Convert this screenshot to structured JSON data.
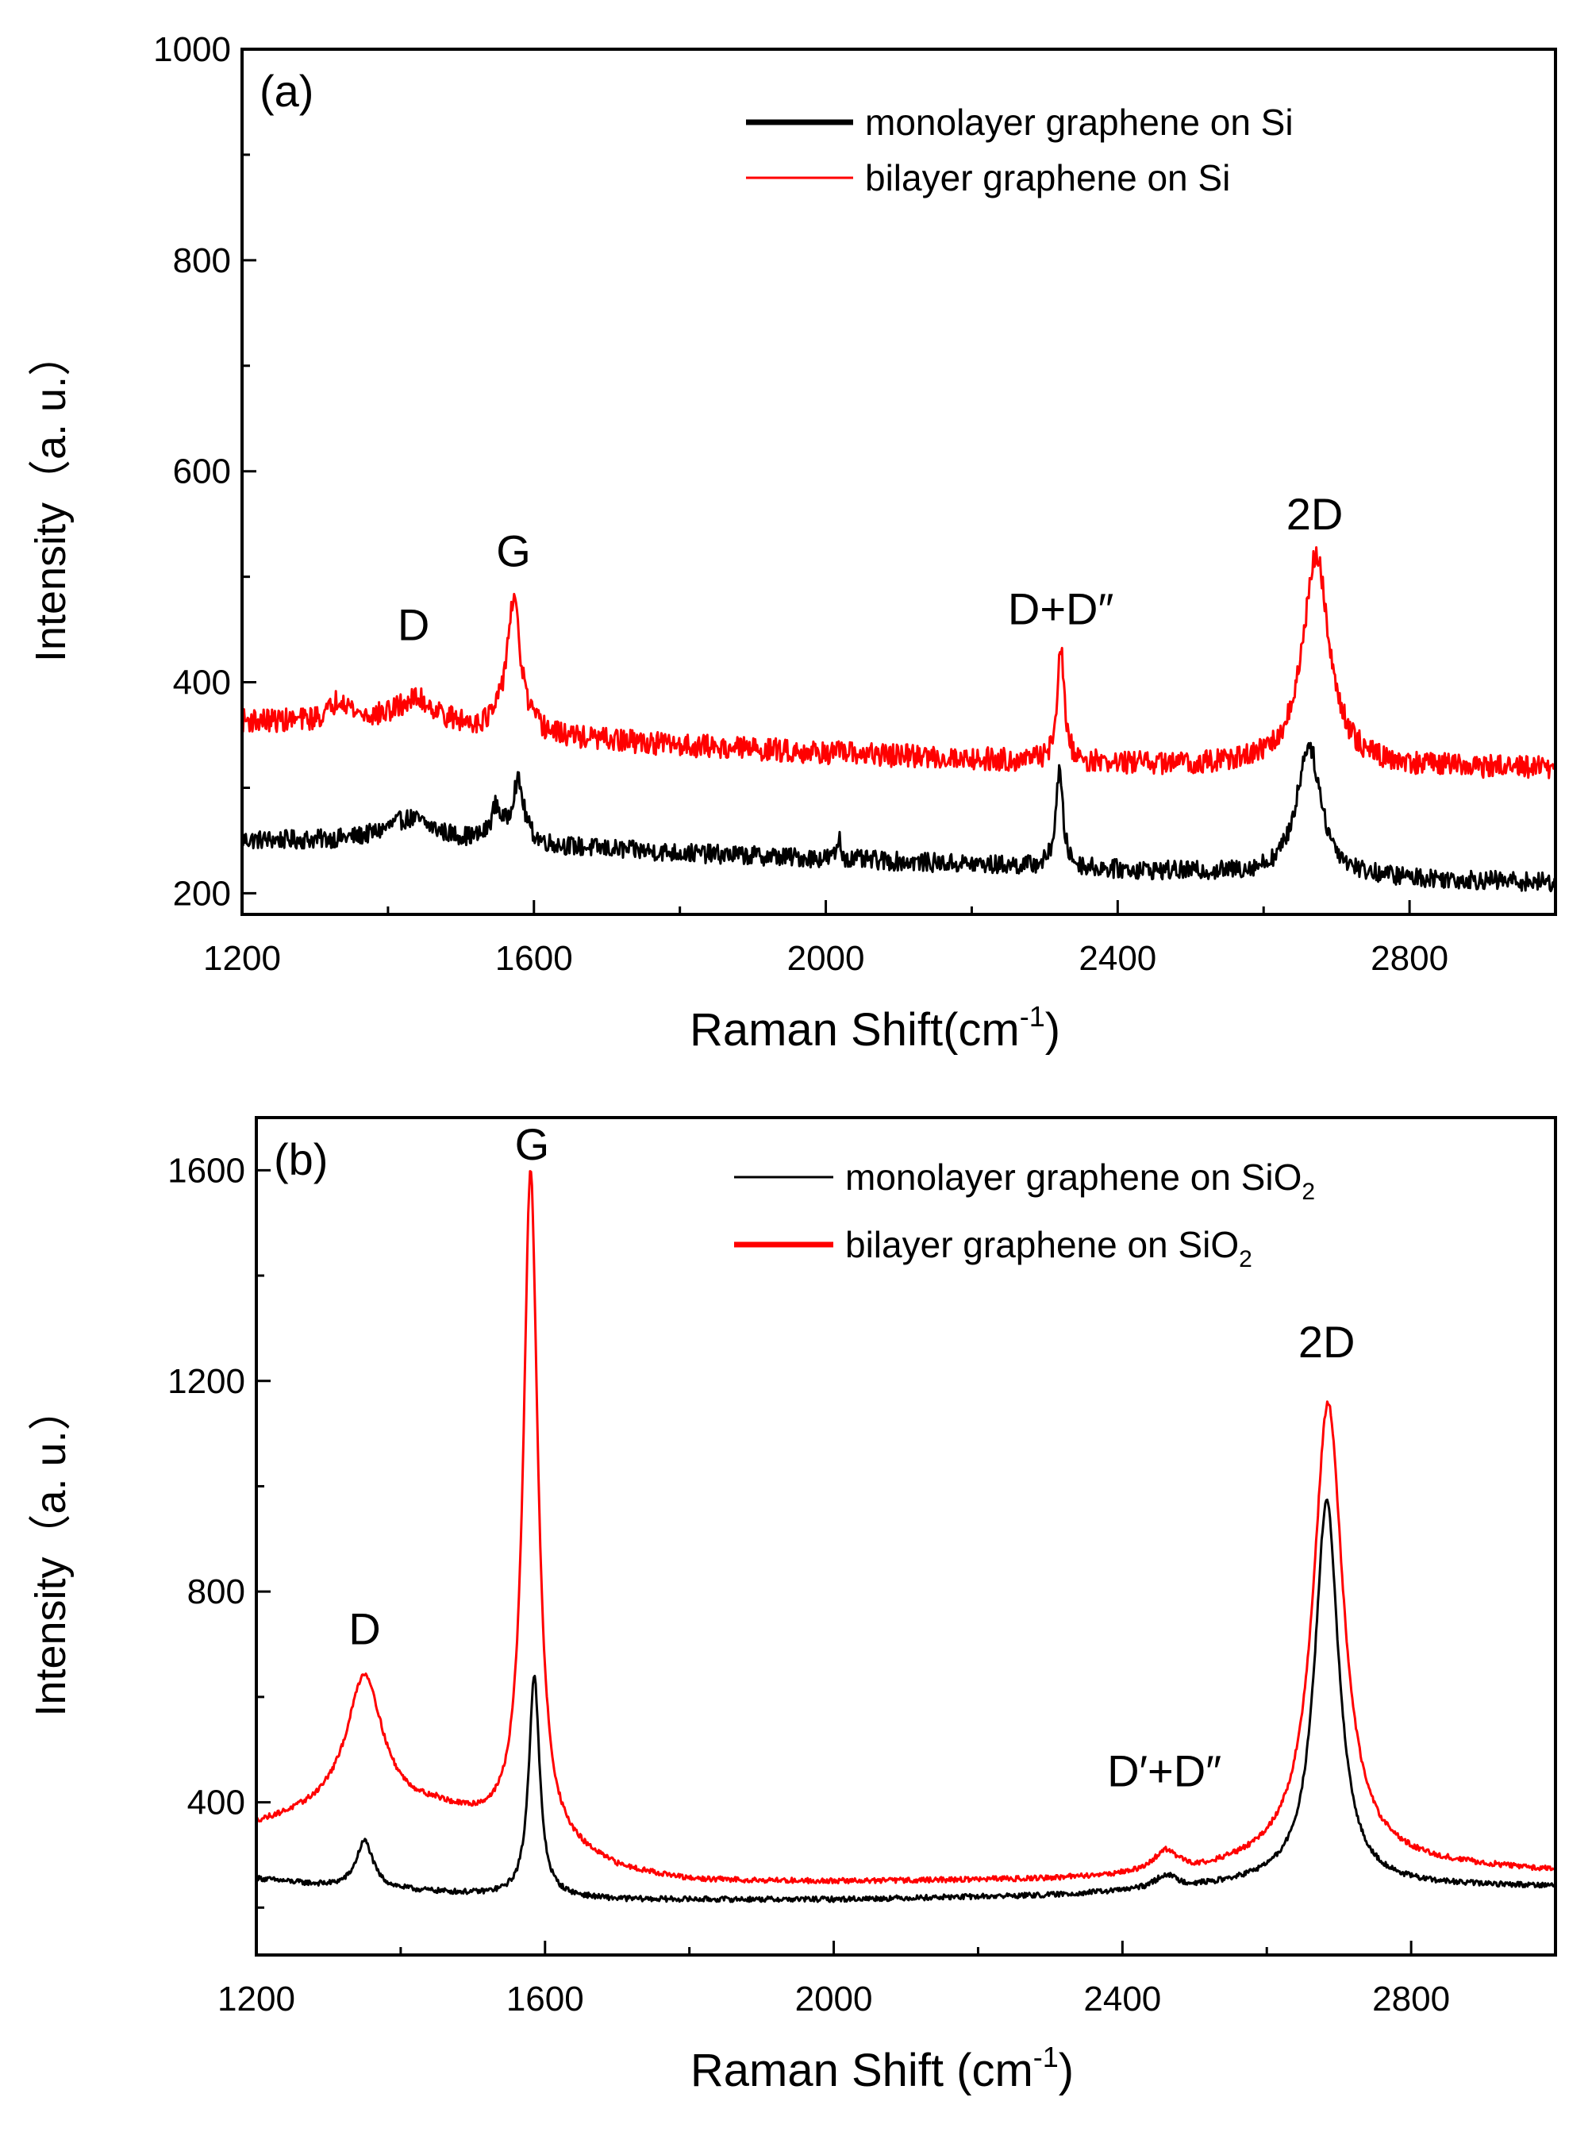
{
  "chart_data": [
    {
      "type": "line",
      "panel_label": "(a)",
      "xlabel": "Raman Shift(cm",
      "xlabel_sup": "-1",
      "xlabel_tail": ")",
      "ylabel": "Intensity（a. u.）",
      "xlim": [
        1200,
        3000
      ],
      "ylim": [
        180,
        1000
      ],
      "xticks": [
        1200,
        1600,
        2000,
        2400,
        2800
      ],
      "yticks": [
        200,
        400,
        600,
        800,
        1000
      ],
      "legend": {
        "position": "top-right",
        "entries": [
          {
            "name": "monolayer graphene on Si",
            "sub": "",
            "color": "#000000",
            "bold_line": true
          },
          {
            "name": "bilayer graphene on Si",
            "sub": "",
            "color": "#ff0000",
            "bold_line": false
          }
        ]
      },
      "annotations": [
        {
          "text": "D",
          "x": 1435,
          "y": 440
        },
        {
          "text": "G",
          "x": 1572,
          "y": 510
        },
        {
          "text": "D+D″",
          "x": 2322,
          "y": 455
        },
        {
          "text": "2D",
          "x": 2670,
          "y": 545
        }
      ],
      "series": [
        {
          "name": "monolayer graphene on Si",
          "color": "#000000",
          "noise": 9,
          "baseline": [
            [
              1200,
              250
            ],
            [
              1500,
              248
            ],
            [
              1800,
              238
            ],
            [
              2100,
              230
            ],
            [
              2400,
              222
            ],
            [
              2700,
              215
            ],
            [
              3000,
              210
            ]
          ],
          "peaks": [
            {
              "center": 1430,
              "amp": 22,
              "width": 40
            },
            {
              "center": 1548,
              "amp": 30,
              "width": 8
            },
            {
              "center": 1578,
              "amp": 58,
              "width": 10
            },
            {
              "center": 2018,
              "amp": 20,
              "width": 3
            },
            {
              "center": 2320,
              "amp": 90,
              "width": 6
            },
            {
              "center": 2662,
              "amp": 125,
              "width": 20
            }
          ]
        },
        {
          "name": "bilayer graphene on Si",
          "color": "#ff0000",
          "noise": 11,
          "baseline": [
            [
              1200,
              363
            ],
            [
              1400,
              360
            ],
            [
              1600,
              348
            ],
            [
              1800,
              340
            ],
            [
              2000,
              333
            ],
            [
              2200,
              327
            ],
            [
              2400,
              322
            ],
            [
              2600,
              320
            ],
            [
              3000,
              318
            ]
          ],
          "peaks": [
            {
              "center": 1335,
              "amp": 22,
              "width": 15
            },
            {
              "center": 1440,
              "amp": 25,
              "width": 35
            },
            {
              "center": 1572,
              "amp": 125,
              "width": 12
            },
            {
              "center": 2322,
              "amp": 105,
              "width": 6
            },
            {
              "center": 2672,
              "amp": 200,
              "width": 22
            }
          ]
        }
      ]
    },
    {
      "type": "line",
      "panel_label": "(b)",
      "xlabel": "Raman Shift (cm",
      "xlabel_sup": "-1",
      "xlabel_tail": ")",
      "ylabel": "Intensity（a. u.）",
      "xlim": [
        1200,
        3000
      ],
      "ylim": [
        110,
        1700
      ],
      "xticks": [
        1200,
        1600,
        2000,
        2400,
        2800
      ],
      "yticks": [
        400,
        800,
        1200,
        1600
      ],
      "legend": {
        "position": "top-right",
        "entries": [
          {
            "name": "monolayer graphene on SiO",
            "sub": "2",
            "color": "#000000",
            "bold_line": false
          },
          {
            "name": "bilayer graphene on SiO",
            "sub": "2",
            "color": "#ff0000",
            "bold_line": true
          }
        ]
      },
      "annotations": [
        {
          "text": "D",
          "x": 1350,
          "y": 700
        },
        {
          "text": "G",
          "x": 1582,
          "y": 1620
        },
        {
          "text": "D′+D″",
          "x": 2458,
          "y": 430
        },
        {
          "text": "2D",
          "x": 2683,
          "y": 1245
        }
      ],
      "series": [
        {
          "name": "monolayer graphene on SiO2",
          "color": "#000000",
          "noise": 5,
          "baseline": [
            [
              1200,
              255
            ],
            [
              1300,
              240
            ],
            [
              1500,
              225
            ],
            [
              1700,
              215
            ],
            [
              2000,
              215
            ],
            [
              2300,
              222
            ],
            [
              2500,
              235
            ],
            [
              2600,
              245
            ],
            [
              2800,
              240
            ],
            [
              3000,
              240
            ]
          ],
          "peaks": [
            {
              "center": 1350,
              "amp": 90,
              "width": 14
            },
            {
              "center": 1585,
              "amp": 420,
              "width": 9
            },
            {
              "center": 2460,
              "amp": 25,
              "width": 18
            },
            {
              "center": 2683,
              "amp": 730,
              "width": 20
            }
          ]
        },
        {
          "name": "bilayer graphene on SiO2",
          "color": "#ff0000",
          "noise": 5,
          "baseline": [
            [
              1200,
              355
            ],
            [
              1300,
              380
            ],
            [
              1450,
              380
            ],
            [
              1550,
              340
            ],
            [
              1700,
              270
            ],
            [
              1800,
              250
            ],
            [
              2000,
              248
            ],
            [
              2300,
              252
            ],
            [
              2500,
              262
            ],
            [
              2650,
              290
            ],
            [
              2800,
              280
            ],
            [
              3000,
              268
            ]
          ],
          "peaks": [
            {
              "center": 1350,
              "amp": 260,
              "width": 30
            },
            {
              "center": 1580,
              "amp": 1270,
              "width": 12
            },
            {
              "center": 2460,
              "amp": 40,
              "width": 20
            },
            {
              "center": 2685,
              "amp": 870,
              "width": 25
            }
          ]
        }
      ]
    }
  ]
}
